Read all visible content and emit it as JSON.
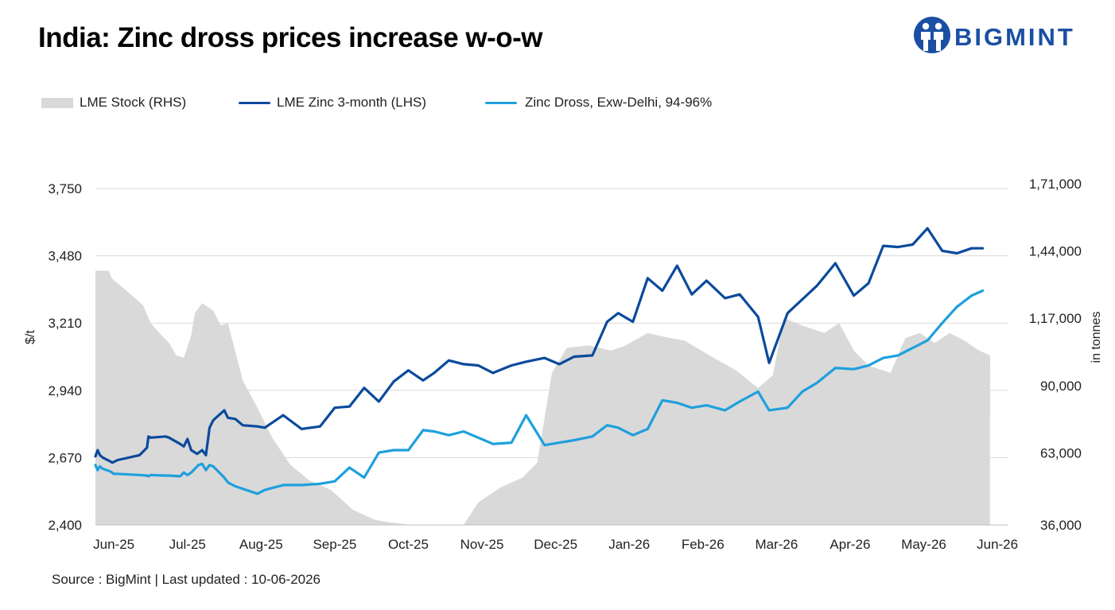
{
  "title": "India: Zinc dross prices increase w-o-w",
  "logo": {
    "text": "BIGMINT",
    "icon": "bigmint-people-icon",
    "color": "#1a4fa3"
  },
  "source": "Source : BigMint | Last updated : 10-06-2026",
  "colors": {
    "lme_stock": "#d9d9d9",
    "lme_zinc": "#0b4a9c",
    "zinc_dross": "#1ea0dc",
    "grid": "#d9d9d9"
  },
  "chart_data": {
    "type": "line",
    "legend": [
      {
        "label": "LME Stock (RHS)",
        "style": "area"
      },
      {
        "label": "LME  Zinc  3-month (LHS)",
        "style": "line"
      },
      {
        "label": "Zinc Dross, Exw-Delhi, 94-96%",
        "style": "line"
      }
    ],
    "legend_position": "top-left",
    "grid": true,
    "ylabel": "$/t",
    "y2label": "in tonnes",
    "ylim": [
      2400,
      3750
    ],
    "y2lim": [
      36000,
      171000
    ],
    "yticks": [
      "2,400",
      "2,670",
      "2,940",
      "3,210",
      "3,480",
      "3,750"
    ],
    "y2ticks": [
      "36,000",
      "63,000",
      "90,000",
      "1,17,000",
      "1,44,000",
      "1,71,000"
    ],
    "xticks": [
      "Jun-25",
      "Jul-25",
      "Aug-25",
      "Sep-25",
      "Oct-25",
      "Nov-25",
      "Dec-25",
      "Jan-26",
      "Feb-26",
      "Mar-26",
      "Apr-26",
      "May-26",
      "Jun-26"
    ],
    "xlim": [
      0,
      12.4
    ],
    "series": [
      {
        "name": "LME Stock (RHS)",
        "type": "area",
        "axis": "right",
        "x": [
          0,
          0.18,
          0.22,
          0.3,
          0.5,
          0.65,
          0.75,
          0.9,
          1.0,
          1.1,
          1.2,
          1.3,
          1.35,
          1.45,
          1.55,
          1.6,
          1.7,
          1.8,
          2.0,
          2.2,
          2.4,
          2.65,
          2.9,
          3.2,
          3.5,
          3.8,
          4.0,
          4.3,
          4.6,
          4.9,
          5.0,
          5.2,
          5.5,
          5.8,
          6.0,
          6.2,
          6.4,
          6.7,
          7.0,
          7.2,
          7.5,
          7.8,
          8.0,
          8.4,
          8.7,
          9.0,
          9.2,
          9.35,
          9.6,
          9.9,
          10.1,
          10.3,
          10.5,
          10.8,
          11.0,
          11.2,
          11.4,
          11.6,
          11.8,
          12.0,
          12.15
        ],
        "values": [
          138000,
          138000,
          135000,
          133000,
          128000,
          124000,
          117000,
          112000,
          109000,
          104000,
          103000,
          112000,
          121000,
          125000,
          123000,
          122000,
          116000,
          117000,
          94000,
          83000,
          71000,
          60000,
          54000,
          50000,
          42000,
          38000,
          37000,
          36000,
          36000,
          36000,
          36000,
          45000,
          51000,
          55000,
          61000,
          97000,
          107000,
          108000,
          106000,
          108000,
          113000,
          111000,
          110000,
          103000,
          98000,
          91000,
          96000,
          119000,
          116000,
          113000,
          117000,
          106000,
          100000,
          97000,
          111000,
          113000,
          109000,
          113000,
          110000,
          106000,
          104000
        ]
      },
      {
        "name": "LME  Zinc  3-month (LHS)",
        "type": "line",
        "axis": "left",
        "x": [
          0,
          0.03,
          0.06,
          0.1,
          0.2,
          0.23,
          0.3,
          0.6,
          0.7,
          0.72,
          0.75,
          0.95,
          1.0,
          1.15,
          1.2,
          1.25,
          1.3,
          1.38,
          1.45,
          1.5,
          1.55,
          1.6,
          1.75,
          1.8,
          1.9,
          2.0,
          2.2,
          2.3,
          2.55,
          2.8,
          3.05,
          3.25,
          3.45,
          3.65,
          3.85,
          4.05,
          4.25,
          4.45,
          4.6,
          4.8,
          5.0,
          5.2,
          5.4,
          5.65,
          5.85,
          6.1,
          6.3,
          6.5,
          6.75,
          6.95,
          7.1,
          7.3,
          7.5,
          7.7,
          7.9,
          8.1,
          8.3,
          8.55,
          8.75,
          9.0,
          9.15,
          9.4,
          9.6,
          9.8,
          10.05,
          10.3,
          10.5,
          10.7,
          10.9,
          11.1,
          11.3,
          11.5,
          11.7,
          11.9,
          12.05
        ],
        "values": [
          2675,
          2700,
          2680,
          2670,
          2655,
          2650,
          2660,
          2680,
          2710,
          2755,
          2750,
          2755,
          2750,
          2725,
          2715,
          2745,
          2700,
          2685,
          2700,
          2680,
          2790,
          2820,
          2860,
          2830,
          2825,
          2800,
          2795,
          2790,
          2840,
          2785,
          2795,
          2870,
          2875,
          2950,
          2895,
          2975,
          3020,
          2980,
          3010,
          3060,
          3045,
          3040,
          3010,
          3040,
          3055,
          3070,
          3045,
          3075,
          3080,
          3215,
          3250,
          3215,
          3390,
          3340,
          3440,
          3325,
          3380,
          3310,
          3325,
          3235,
          3050,
          3250,
          3305,
          3360,
          3450,
          3320,
          3370,
          3520,
          3515,
          3525,
          3590,
          3500,
          3490,
          3510,
          3510
        ]
      },
      {
        "name": "Zinc Dross, Exw-Delhi, 94-96%",
        "type": "line",
        "axis": "left",
        "x": [
          0,
          0.03,
          0.06,
          0.1,
          0.2,
          0.25,
          0.3,
          0.6,
          0.7,
          0.72,
          0.75,
          0.95,
          1.0,
          1.15,
          1.2,
          1.25,
          1.3,
          1.35,
          1.4,
          1.45,
          1.5,
          1.55,
          1.6,
          1.65,
          1.75,
          1.8,
          1.9,
          2.0,
          2.2,
          2.3,
          2.55,
          2.8,
          3.05,
          3.25,
          3.45,
          3.65,
          3.85,
          4.05,
          4.25,
          4.45,
          4.6,
          4.8,
          5.0,
          5.2,
          5.4,
          5.65,
          5.85,
          6.1,
          6.3,
          6.5,
          6.75,
          6.95,
          7.1,
          7.3,
          7.5,
          7.7,
          7.9,
          8.1,
          8.3,
          8.55,
          8.75,
          9.0,
          9.15,
          9.4,
          9.6,
          9.8,
          10.05,
          10.3,
          10.5,
          10.7,
          10.9,
          11.1,
          11.3,
          11.5,
          11.7,
          11.9,
          12.05
        ],
        "values": [
          2640,
          2620,
          2635,
          2625,
          2615,
          2605,
          2605,
          2600,
          2598,
          2595,
          2600,
          2598,
          2598,
          2595,
          2610,
          2600,
          2610,
          2625,
          2640,
          2645,
          2620,
          2640,
          2635,
          2620,
          2590,
          2570,
          2555,
          2545,
          2525,
          2540,
          2560,
          2560,
          2565,
          2575,
          2630,
          2590,
          2690,
          2700,
          2700,
          2780,
          2775,
          2760,
          2775,
          2750,
          2725,
          2730,
          2840,
          2720,
          2730,
          2740,
          2755,
          2800,
          2790,
          2760,
          2785,
          2900,
          2890,
          2870,
          2880,
          2860,
          2895,
          2935,
          2860,
          2870,
          2935,
          2970,
          3030,
          3025,
          3040,
          3070,
          3080,
          3110,
          3140,
          3210,
          3275,
          3320,
          3340
        ]
      }
    ]
  }
}
